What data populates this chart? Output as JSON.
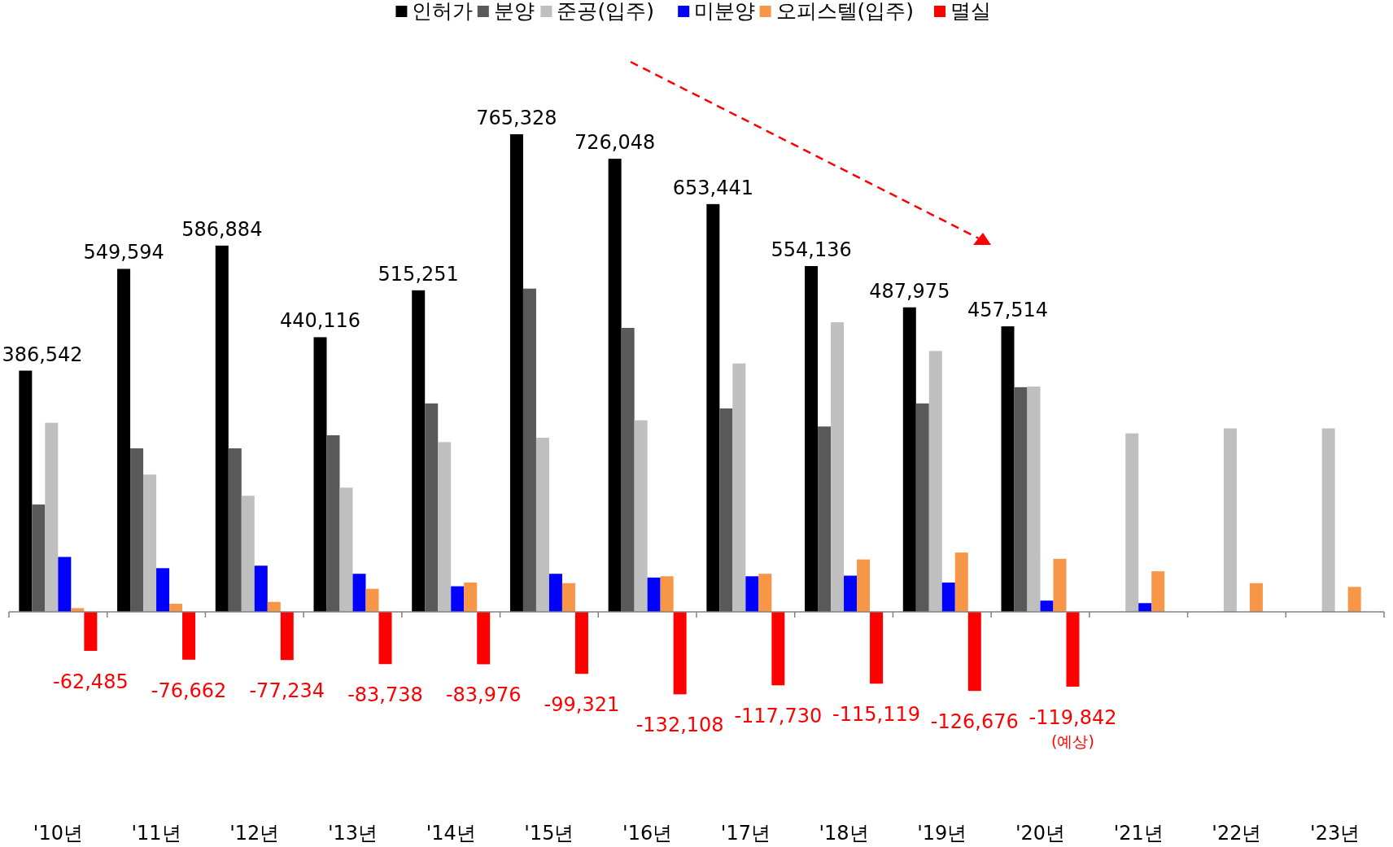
{
  "chart_data": {
    "type": "bar",
    "categories": [
      "'10년",
      "'11년",
      "'12년",
      "'13년",
      "'14년",
      "'15년",
      "'16년",
      "'17년",
      "'18년",
      "'19년",
      "'20년",
      "'21년",
      "'22년",
      "'23년"
    ],
    "series": [
      {
        "name": "인허가",
        "color": "#000000",
        "values": [
          386542,
          549594,
          586884,
          440116,
          515251,
          765328,
          726048,
          653441,
          554136,
          487975,
          457514,
          null,
          null,
          null
        ],
        "value_labels": [
          "386,542",
          "549,594",
          "586,884",
          "440,116",
          "515,251",
          "765,328",
          "726,048",
          "653,441",
          "554,136",
          "487,975",
          "457,514",
          null,
          null,
          null
        ]
      },
      {
        "name": "분양",
        "color": "#595959",
        "values": [
          172000,
          262000,
          262000,
          283000,
          334000,
          518000,
          455000,
          326000,
          297000,
          334000,
          360000,
          null,
          null,
          null
        ]
      },
      {
        "name": "준공(입주)",
        "color": "#bfbfbf",
        "values": [
          303000,
          220000,
          186000,
          199000,
          272000,
          279000,
          307000,
          398000,
          464000,
          418000,
          361000,
          286000,
          294000,
          294000
        ]
      },
      {
        "name": "미분양",
        "color": "#0000ff",
        "values": [
          88000,
          70000,
          74000,
          61000,
          41000,
          61000,
          55000,
          57000,
          58000,
          47000,
          18000,
          14000,
          null,
          null
        ]
      },
      {
        "name": "오피스텔(입주)",
        "color": "#f79646",
        "values": [
          6000,
          13000,
          16000,
          37000,
          47000,
          46000,
          57000,
          61000,
          84000,
          95000,
          85000,
          65000,
          46000,
          40000
        ]
      },
      {
        "name": "멸실",
        "color": "#ff0000",
        "values": [
          -62485,
          -76662,
          -77234,
          -83738,
          -83976,
          -99321,
          -132108,
          -117730,
          -115119,
          -126676,
          -119842,
          null,
          null,
          null
        ],
        "value_labels": [
          "-62,485",
          "-76,662",
          "-77,234",
          "-83,738",
          "-83,976",
          "-99,321",
          "-132,108",
          "-117,730",
          "-115,119",
          "-126,676",
          "-119,842",
          null,
          null,
          null
        ]
      }
    ],
    "tick_labels": "x",
    "legend": "top",
    "annotations": [
      "(예상)"
    ]
  }
}
